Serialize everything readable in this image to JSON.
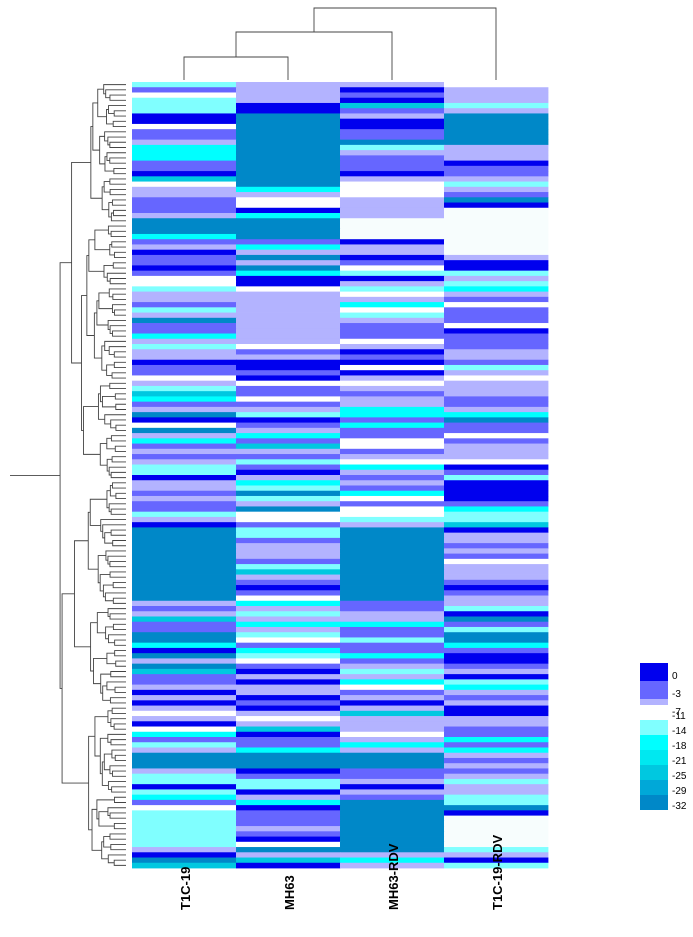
{
  "chart_data": {
    "type": "heatmap",
    "title": "",
    "columns": [
      "T1C-19",
      "MH63",
      "MH63-RDV",
      "T1C-19-RDV"
    ],
    "column_dendrogram": "((T1C-19,MH63),MH63-RDV),T1C-19-RDV)",
    "row_count": 150,
    "legend": {
      "position": "bottom-right",
      "groups": [
        {
          "name": "blue",
          "ticks": [
            "0",
            "-3",
            "-7"
          ],
          "colors": [
            "#0000ee",
            "#6666ff",
            "#b3b3ff"
          ]
        },
        {
          "name": "cyan",
          "ticks": [
            "-11",
            "-14",
            "-18",
            "-21",
            "-25",
            "-29",
            "-32"
          ],
          "colors": [
            "#ffffff",
            "#80ffff",
            "#00ffff",
            "#00e8f0",
            "#00c8e0",
            "#00a8d8",
            "#0088c8"
          ]
        }
      ]
    },
    "level_values": [
      0,
      -3,
      -7,
      -9,
      -11,
      -14,
      -18,
      -21,
      -25,
      -29,
      -32
    ],
    "palette": {
      "0": "#0000ee",
      "-3": "#6666ff",
      "-7": "#b3b3ff",
      "-9": "#f7fdfd",
      "-11": "#ffffff",
      "-14": "#80ffff",
      "-18": "#00ffff",
      "-21": "#00e8f0",
      "-25": "#00c8e0",
      "-29": "#00a8d8",
      "-32": "#0088c8"
    }
  }
}
